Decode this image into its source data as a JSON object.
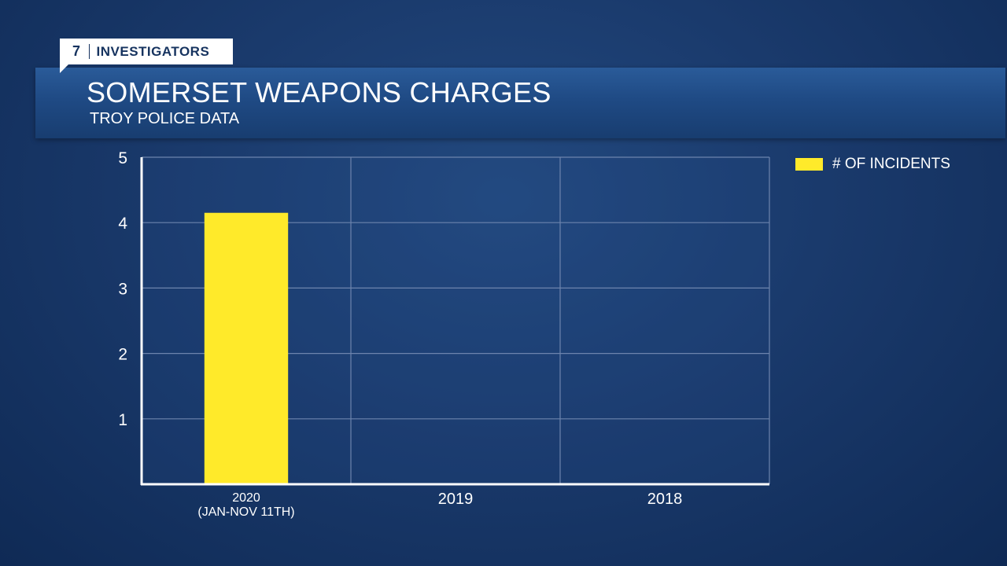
{
  "brand": {
    "number": "7",
    "name": "INVESTIGATORS"
  },
  "header": {
    "title": "SOMERSET WEAPONS CHARGES",
    "subtitle": "TROY POLICE DATA"
  },
  "legend": {
    "label": "# OF INCIDENTS"
  },
  "colors": {
    "bar": "#ffea2a",
    "grid": "#6d84ad",
    "axis": "#ffffff"
  },
  "chart_data": {
    "type": "bar",
    "categories": [
      [
        "2020",
        "(JAN-NOV 11TH)"
      ],
      [
        "2019"
      ],
      [
        "2018"
      ]
    ],
    "series": [
      {
        "name": "# OF INCIDENTS",
        "values": [
          4.15,
          null,
          null
        ]
      }
    ],
    "yticks": [
      1,
      2,
      3,
      4,
      5
    ],
    "ylim": [
      0,
      5
    ],
    "grid": true,
    "legend": "top-right"
  }
}
